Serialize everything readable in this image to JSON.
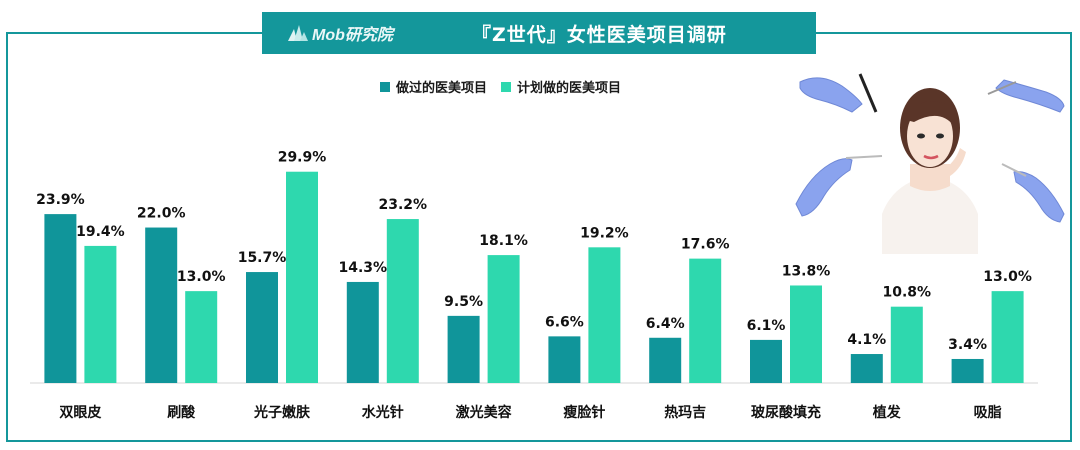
{
  "header": {
    "logo_text": "Mob研究院",
    "title": "『Z世代』女性医美项目调研"
  },
  "colors": {
    "brand": "#14979b",
    "series_done": "#10959a",
    "series_planned": "#2ed8ae"
  },
  "chart_data": {
    "type": "bar",
    "title": "『Z世代』女性医美项目调研",
    "categories": [
      "双眼皮",
      "刷酸",
      "光子嫩肤",
      "水光针",
      "激光美容",
      "瘦脸针",
      "热玛吉",
      "玻尿酸填充",
      "植发",
      "吸脂"
    ],
    "series": [
      {
        "name": "做过的医美项目",
        "values": [
          23.9,
          22.0,
          15.7,
          14.3,
          9.5,
          6.6,
          6.4,
          6.1,
          4.1,
          3.4
        ]
      },
      {
        "name": "计划做的医美项目",
        "values": [
          19.4,
          13.0,
          29.9,
          23.2,
          18.1,
          19.2,
          17.6,
          13.8,
          10.8,
          13.0
        ]
      }
    ],
    "value_labels": [
      [
        "23.9%",
        "22.0%",
        "15.7%",
        "14.3%",
        "9.5%",
        "6.6%",
        "6.4%",
        "6.1%",
        "4.1%",
        "3.4%"
      ],
      [
        "19.4%",
        "13.0%",
        "29.9%",
        "23.2%",
        "18.1%",
        "19.2%",
        "17.6%",
        "13.8%",
        "10.8%",
        "13.0%"
      ]
    ],
    "unit": "%",
    "ylim": [
      0,
      30
    ],
    "grid": false,
    "legend_position": "top-center"
  }
}
